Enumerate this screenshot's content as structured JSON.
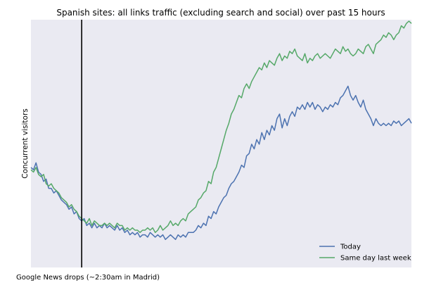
{
  "chart_data": {
    "type": "line",
    "title": "Spanish sites: all links traffic (excluding search and social) over past 15 hours",
    "ylabel": "Concurrent visitors",
    "xlabel": "",
    "grid": false,
    "legend_position": "bottom-right",
    "background": "#eaeaf2",
    "xlim": [
      0,
      15
    ],
    "ylim": [
      0,
      100
    ],
    "annotation": {
      "label": "Google News drops (~2:30am in Madrid)",
      "x": 2.0
    },
    "series": [
      {
        "name": "Today",
        "color": "#4c72b0",
        "points": [
          [
            0.0,
            37
          ],
          [
            0.1,
            36
          ],
          [
            0.2,
            39
          ],
          [
            0.3,
            35
          ],
          [
            0.4,
            34
          ],
          [
            0.5,
            31
          ],
          [
            0.6,
            32
          ],
          [
            0.7,
            28
          ],
          [
            0.8,
            28
          ],
          [
            0.9,
            26
          ],
          [
            1.0,
            27
          ],
          [
            1.1,
            25
          ],
          [
            1.2,
            23
          ],
          [
            1.3,
            22
          ],
          [
            1.4,
            21
          ],
          [
            1.5,
            19
          ],
          [
            1.6,
            20
          ],
          [
            1.7,
            17
          ],
          [
            1.8,
            18
          ],
          [
            1.9,
            15
          ],
          [
            2.0,
            14
          ],
          [
            2.1,
            15
          ],
          [
            2.2,
            12
          ],
          [
            2.3,
            13
          ],
          [
            2.4,
            11
          ],
          [
            2.5,
            13
          ],
          [
            2.6,
            11
          ],
          [
            2.7,
            12
          ],
          [
            2.8,
            11
          ],
          [
            2.9,
            13
          ],
          [
            3.0,
            11
          ],
          [
            3.1,
            12
          ],
          [
            3.2,
            11
          ],
          [
            3.3,
            10
          ],
          [
            3.4,
            12
          ],
          [
            3.5,
            10
          ],
          [
            3.6,
            11
          ],
          [
            3.7,
            9
          ],
          [
            3.8,
            10
          ],
          [
            3.9,
            8
          ],
          [
            4.0,
            9
          ],
          [
            4.1,
            8
          ],
          [
            4.2,
            9
          ],
          [
            4.3,
            7
          ],
          [
            4.4,
            8
          ],
          [
            4.5,
            8
          ],
          [
            4.6,
            7
          ],
          [
            4.7,
            9
          ],
          [
            4.8,
            8
          ],
          [
            4.9,
            7
          ],
          [
            5.0,
            8
          ],
          [
            5.1,
            7
          ],
          [
            5.2,
            8
          ],
          [
            5.3,
            6
          ],
          [
            5.4,
            7
          ],
          [
            5.5,
            8
          ],
          [
            5.6,
            7
          ],
          [
            5.7,
            6
          ],
          [
            5.8,
            8
          ],
          [
            5.9,
            7
          ],
          [
            6.0,
            8
          ],
          [
            6.1,
            7
          ],
          [
            6.2,
            9
          ],
          [
            6.3,
            9
          ],
          [
            6.4,
            9
          ],
          [
            6.5,
            10
          ],
          [
            6.6,
            12
          ],
          [
            6.7,
            11
          ],
          [
            6.8,
            13
          ],
          [
            6.9,
            12
          ],
          [
            7.0,
            16
          ],
          [
            7.1,
            15
          ],
          [
            7.2,
            18
          ],
          [
            7.3,
            17
          ],
          [
            7.4,
            20
          ],
          [
            7.5,
            22
          ],
          [
            7.6,
            24
          ],
          [
            7.7,
            25
          ],
          [
            7.8,
            28
          ],
          [
            7.9,
            30
          ],
          [
            8.0,
            31
          ],
          [
            8.1,
            33
          ],
          [
            8.2,
            35
          ],
          [
            8.3,
            38
          ],
          [
            8.4,
            37
          ],
          [
            8.5,
            42
          ],
          [
            8.6,
            43
          ],
          [
            8.7,
            47
          ],
          [
            8.8,
            45
          ],
          [
            8.9,
            49
          ],
          [
            9.0,
            47
          ],
          [
            9.1,
            52
          ],
          [
            9.2,
            49
          ],
          [
            9.3,
            53
          ],
          [
            9.4,
            51
          ],
          [
            9.5,
            55
          ],
          [
            9.6,
            53
          ],
          [
            9.7,
            58
          ],
          [
            9.8,
            60
          ],
          [
            9.9,
            54
          ],
          [
            10.0,
            58
          ],
          [
            10.1,
            55
          ],
          [
            10.2,
            59
          ],
          [
            10.3,
            61
          ],
          [
            10.4,
            59
          ],
          [
            10.5,
            63
          ],
          [
            10.6,
            62
          ],
          [
            10.7,
            64
          ],
          [
            10.8,
            62
          ],
          [
            10.9,
            65
          ],
          [
            11.0,
            63
          ],
          [
            11.1,
            65
          ],
          [
            11.2,
            62
          ],
          [
            11.3,
            64
          ],
          [
            11.4,
            63
          ],
          [
            11.5,
            61
          ],
          [
            11.6,
            63
          ],
          [
            11.7,
            62
          ],
          [
            11.8,
            64
          ],
          [
            11.9,
            63
          ],
          [
            12.0,
            65
          ],
          [
            12.1,
            64
          ],
          [
            12.2,
            67
          ],
          [
            12.3,
            68
          ],
          [
            12.4,
            70
          ],
          [
            12.5,
            72
          ],
          [
            12.6,
            68
          ],
          [
            12.7,
            66
          ],
          [
            12.8,
            68
          ],
          [
            12.9,
            65
          ],
          [
            13.0,
            63
          ],
          [
            13.1,
            66
          ],
          [
            13.2,
            62
          ],
          [
            13.3,
            60
          ],
          [
            13.4,
            58
          ],
          [
            13.5,
            55
          ],
          [
            13.6,
            58
          ],
          [
            13.7,
            56
          ],
          [
            13.8,
            55
          ],
          [
            13.9,
            56
          ],
          [
            14.0,
            55
          ],
          [
            14.1,
            56
          ],
          [
            14.2,
            55
          ],
          [
            14.3,
            57
          ],
          [
            14.4,
            56
          ],
          [
            14.5,
            57
          ],
          [
            14.6,
            55
          ],
          [
            14.7,
            56
          ],
          [
            14.8,
            57
          ],
          [
            14.9,
            58
          ],
          [
            15.0,
            56
          ]
        ]
      },
      {
        "name": "Same day last week",
        "color": "#55a868",
        "points": [
          [
            0.0,
            36
          ],
          [
            0.1,
            35
          ],
          [
            0.2,
            37
          ],
          [
            0.3,
            34
          ],
          [
            0.4,
            33
          ],
          [
            0.5,
            34
          ],
          [
            0.6,
            30
          ],
          [
            0.7,
            29
          ],
          [
            0.8,
            30
          ],
          [
            0.9,
            28
          ],
          [
            1.0,
            27
          ],
          [
            1.1,
            26
          ],
          [
            1.2,
            24
          ],
          [
            1.3,
            23
          ],
          [
            1.4,
            22
          ],
          [
            1.5,
            20
          ],
          [
            1.6,
            21
          ],
          [
            1.7,
            19
          ],
          [
            1.8,
            18
          ],
          [
            1.9,
            16
          ],
          [
            2.0,
            15
          ],
          [
            2.1,
            14
          ],
          [
            2.2,
            13
          ],
          [
            2.3,
            15
          ],
          [
            2.4,
            12
          ],
          [
            2.5,
            14
          ],
          [
            2.6,
            13
          ],
          [
            2.7,
            12
          ],
          [
            2.8,
            12
          ],
          [
            2.9,
            13
          ],
          [
            3.0,
            12
          ],
          [
            3.1,
            13
          ],
          [
            3.2,
            12
          ],
          [
            3.3,
            11
          ],
          [
            3.4,
            13
          ],
          [
            3.5,
            12
          ],
          [
            3.6,
            12
          ],
          [
            3.7,
            10
          ],
          [
            3.8,
            11
          ],
          [
            3.9,
            10
          ],
          [
            4.0,
            11
          ],
          [
            4.1,
            10
          ],
          [
            4.2,
            10
          ],
          [
            4.3,
            9
          ],
          [
            4.4,
            10
          ],
          [
            4.5,
            10
          ],
          [
            4.6,
            11
          ],
          [
            4.7,
            10
          ],
          [
            4.8,
            11
          ],
          [
            4.9,
            9
          ],
          [
            5.0,
            10
          ],
          [
            5.1,
            12
          ],
          [
            5.2,
            10
          ],
          [
            5.3,
            11
          ],
          [
            5.4,
            12
          ],
          [
            5.5,
            14
          ],
          [
            5.6,
            12
          ],
          [
            5.7,
            13
          ],
          [
            5.8,
            12
          ],
          [
            5.9,
            14
          ],
          [
            6.0,
            15
          ],
          [
            6.1,
            14
          ],
          [
            6.2,
            17
          ],
          [
            6.3,
            18
          ],
          [
            6.4,
            19
          ],
          [
            6.5,
            20
          ],
          [
            6.6,
            23
          ],
          [
            6.7,
            24
          ],
          [
            6.8,
            26
          ],
          [
            6.9,
            27
          ],
          [
            7.0,
            31
          ],
          [
            7.1,
            30
          ],
          [
            7.2,
            35
          ],
          [
            7.3,
            37
          ],
          [
            7.4,
            41
          ],
          [
            7.5,
            45
          ],
          [
            7.6,
            49
          ],
          [
            7.7,
            53
          ],
          [
            7.8,
            56
          ],
          [
            7.9,
            60
          ],
          [
            8.0,
            62
          ],
          [
            8.1,
            65
          ],
          [
            8.2,
            68
          ],
          [
            8.3,
            67
          ],
          [
            8.4,
            71
          ],
          [
            8.5,
            73
          ],
          [
            8.6,
            71
          ],
          [
            8.7,
            74
          ],
          [
            8.8,
            76
          ],
          [
            8.9,
            78
          ],
          [
            9.0,
            80
          ],
          [
            9.1,
            79
          ],
          [
            9.2,
            82
          ],
          [
            9.3,
            80
          ],
          [
            9.4,
            83
          ],
          [
            9.5,
            82
          ],
          [
            9.6,
            81
          ],
          [
            9.7,
            84
          ],
          [
            9.8,
            86
          ],
          [
            9.9,
            83
          ],
          [
            10.0,
            85
          ],
          [
            10.1,
            84
          ],
          [
            10.2,
            87
          ],
          [
            10.3,
            86
          ],
          [
            10.4,
            88
          ],
          [
            10.5,
            85
          ],
          [
            10.6,
            84
          ],
          [
            10.7,
            83
          ],
          [
            10.8,
            86
          ],
          [
            10.9,
            82
          ],
          [
            11.0,
            84
          ],
          [
            11.1,
            83
          ],
          [
            11.2,
            85
          ],
          [
            11.3,
            86
          ],
          [
            11.4,
            84
          ],
          [
            11.5,
            85
          ],
          [
            11.6,
            86
          ],
          [
            11.7,
            85
          ],
          [
            11.8,
            84
          ],
          [
            11.9,
            86
          ],
          [
            12.0,
            88
          ],
          [
            12.1,
            87
          ],
          [
            12.2,
            86
          ],
          [
            12.3,
            89
          ],
          [
            12.4,
            87
          ],
          [
            12.5,
            88
          ],
          [
            12.6,
            86
          ],
          [
            12.7,
            85
          ],
          [
            12.8,
            86
          ],
          [
            12.9,
            88
          ],
          [
            13.0,
            87
          ],
          [
            13.1,
            86
          ],
          [
            13.2,
            89
          ],
          [
            13.3,
            90
          ],
          [
            13.4,
            88
          ],
          [
            13.5,
            86
          ],
          [
            13.6,
            90
          ],
          [
            13.7,
            91
          ],
          [
            13.8,
            92
          ],
          [
            13.9,
            94
          ],
          [
            14.0,
            93
          ],
          [
            14.1,
            95
          ],
          [
            14.2,
            94
          ],
          [
            14.3,
            92
          ],
          [
            14.4,
            94
          ],
          [
            14.5,
            95
          ],
          [
            14.6,
            98
          ],
          [
            14.7,
            97
          ],
          [
            14.8,
            99
          ],
          [
            14.9,
            100
          ],
          [
            15.0,
            99
          ]
        ]
      }
    ]
  }
}
